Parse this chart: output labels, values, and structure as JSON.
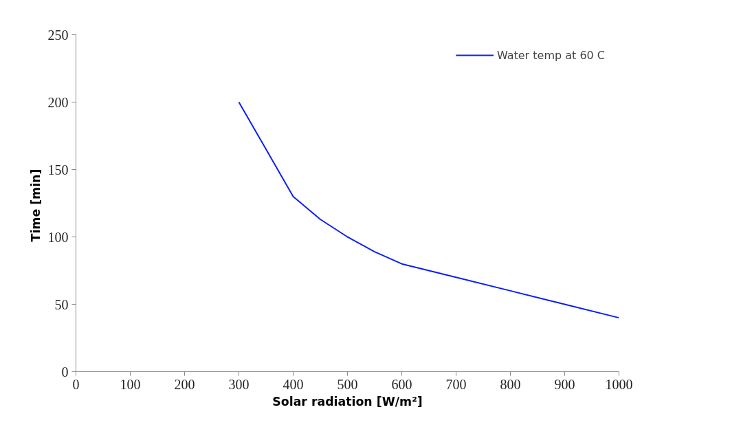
{
  "chart_data": {
    "type": "line",
    "xlabel": "Solar radiation [W/m²]",
    "ylabel": "Time  [min]",
    "x": [
      300,
      350,
      400,
      450,
      500,
      550,
      600,
      650,
      700,
      800,
      900,
      1000
    ],
    "series": [
      {
        "name": "Water temp at 60 C",
        "color": "#0a1ff5",
        "values": [
          200,
          165,
          130,
          113,
          100,
          89,
          80,
          75,
          70,
          60,
          50,
          40
        ]
      }
    ],
    "xlim": [
      0,
      1000
    ],
    "xticks": [
      0,
      100,
      200,
      300,
      400,
      500,
      600,
      700,
      800,
      900,
      1000
    ],
    "ylim": [
      0,
      250
    ],
    "yticks": [
      0,
      50,
      100,
      150,
      200,
      250
    ],
    "grid": false,
    "legend": "top right",
    "marker": "none",
    "line_style": "solid"
  }
}
